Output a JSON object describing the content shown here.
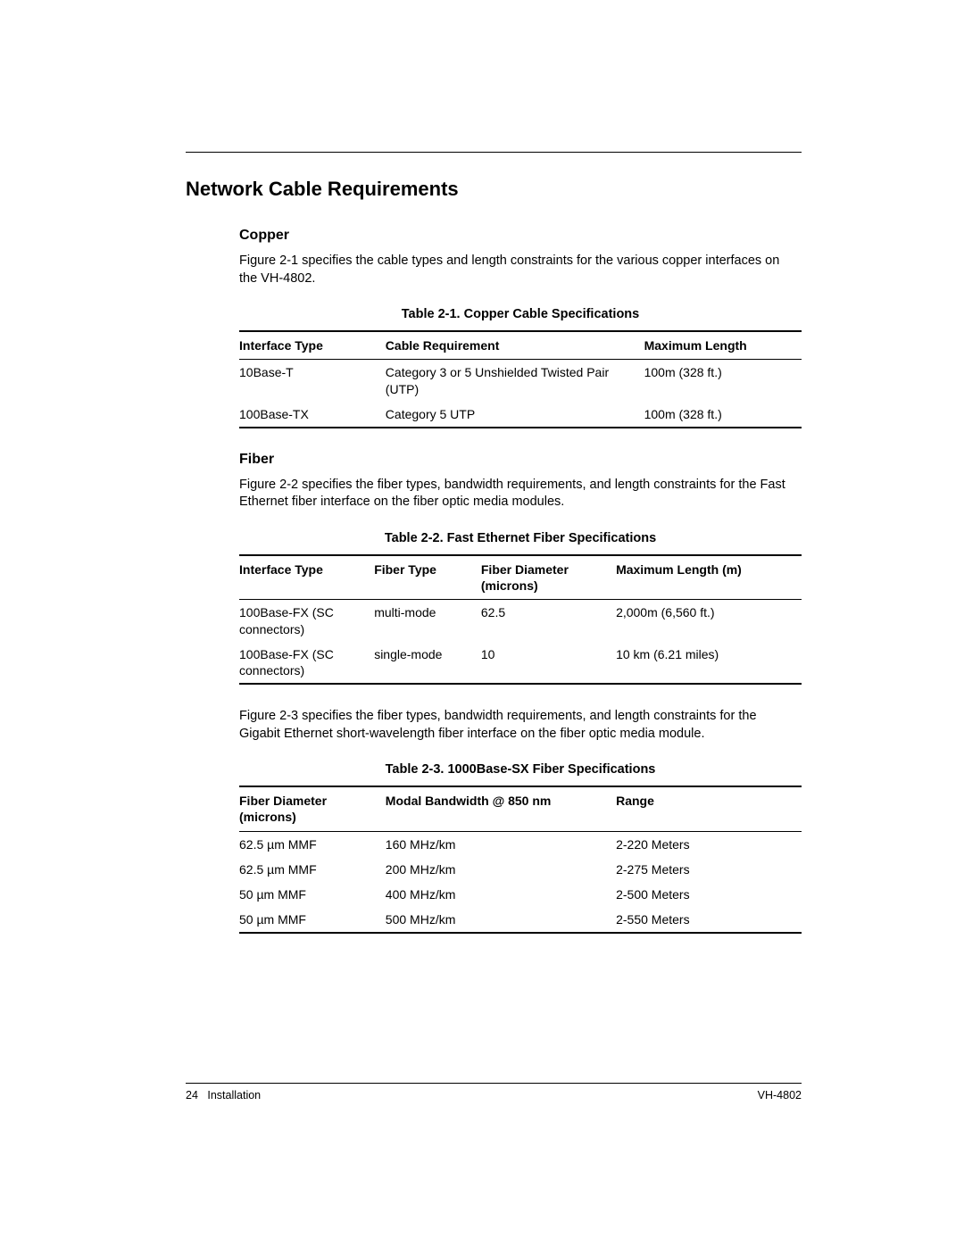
{
  "heading": "Network Cable Requirements",
  "copper": {
    "title": "Copper",
    "para": "Figure 2-1 specifies the cable types and length constraints for the various copper interfaces on the VH-4802.",
    "caption": "Table 2-1.  Copper Cable Specifications",
    "headers": [
      "Interface Type",
      "Cable Requirement",
      "Maximum Length"
    ],
    "rows": [
      [
        "10Base-T",
        "Category 3 or 5 Unshielded Twisted Pair (UTP)",
        "100m (328 ft.)"
      ],
      [
        "100Base-TX",
        "Category 5 UTP",
        "100m (328 ft.)"
      ]
    ],
    "col_widths": [
      "26%",
      "46%",
      "28%"
    ]
  },
  "fiber": {
    "title": "Fiber",
    "para1": "Figure 2-2 specifies the fiber types, bandwidth requirements, and length constraints for the Fast Ethernet fiber interface on the fiber optic media modules.",
    "caption1": "Table 2-2.  Fast Ethernet Fiber Specifications",
    "headers1": [
      "Interface Type",
      "Fiber Type",
      "Fiber Diameter (microns)",
      "Maximum Length (m)"
    ],
    "rows1": [
      [
        "100Base-FX (SC connectors)",
        "multi-mode",
        "62.5",
        "2,000m (6,560 ft.)"
      ],
      [
        "100Base-FX (SC connectors)",
        "single-mode",
        "10",
        "10 km (6.21 miles)"
      ]
    ],
    "col_widths1": [
      "24%",
      "19%",
      "24%",
      "33%"
    ],
    "para2": "Figure 2-3 specifies the fiber types, bandwidth requirements, and length constraints for the Gigabit Ethernet short-wavelength fiber interface on the fiber optic media module.",
    "caption2": "Table 2-3.  1000Base-SX Fiber Specifications",
    "headers2": [
      "Fiber Diameter (microns)",
      "Modal Bandwidth @ 850 nm",
      "Range"
    ],
    "rows2": [
      [
        "62.5 µm MMF",
        "160 MHz/km",
        "2-220 Meters"
      ],
      [
        "62.5 µm MMF",
        "200 MHz/km",
        "2-275 Meters"
      ],
      [
        "50 µm MMF",
        "400 MHz/km",
        "2-500 Meters"
      ],
      [
        "50 µm MMF",
        "500 MHz/km",
        "2-550 Meters"
      ]
    ],
    "col_widths2": [
      "26%",
      "41%",
      "33%"
    ]
  },
  "footer": {
    "left_page": "24",
    "left_section": "Installation",
    "right": "VH-4802"
  }
}
